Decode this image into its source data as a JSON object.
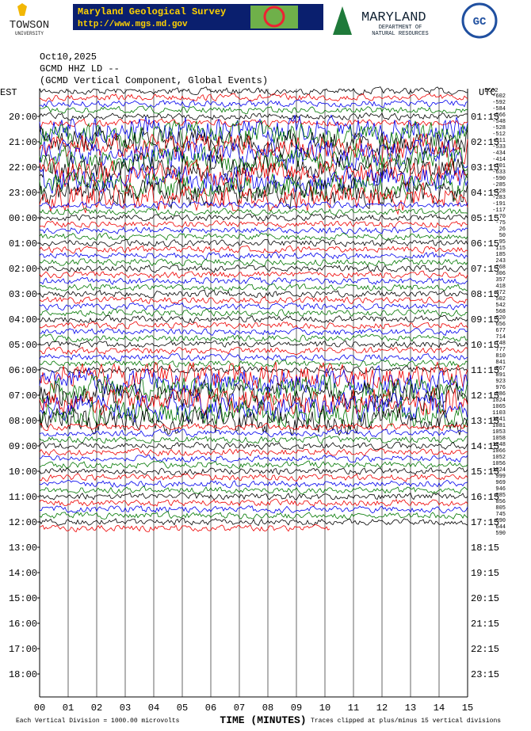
{
  "header": {
    "towson": "TOWSON",
    "towson_sub": "UNIVERSITY",
    "banner_title": "Maryland Geological Survey",
    "banner_url": "http://www.mgs.md.gov",
    "dnr_title": "MARYLAND",
    "dnr_line1": "DEPARTMENT OF",
    "dnr_line2": "NATURAL RESOURCES"
  },
  "chart": {
    "date": "Oct10,2025",
    "station": "GCMD HHZ LD --",
    "subtitle": "(GCMD Vertical Component, Global Events)",
    "left_label": "EST",
    "right_label": "UTC",
    "left_times": [
      "20:00",
      "21:00",
      "22:00",
      "23:00",
      "00:00",
      "01:00",
      "02:00",
      "03:00",
      "04:00",
      "05:00",
      "06:00",
      "07:00",
      "08:00",
      "09:00",
      "10:00",
      "11:00",
      "12:00",
      "13:00",
      "14:00",
      "15:00",
      "16:00",
      "17:00",
      "18:00"
    ],
    "right_times": [
      "01:15",
      "02:15",
      "03:15",
      "04:15",
      "05:15",
      "06:15",
      "07:15",
      "08:15",
      "09:15",
      "10:15",
      "11:15",
      "12:15",
      "13:15",
      "14:15",
      "15:15",
      "16:15",
      "17:15",
      "18:15",
      "19:15",
      "20:15",
      "21:15",
      "22:15",
      "23:15"
    ],
    "offsets_header": "DC02",
    "offsets": [
      -602,
      -592,
      -584,
      -566,
      -548,
      -528,
      -512,
      -511,
      -533,
      -434,
      -414,
      -301,
      -633,
      -590,
      -285,
      -228,
      -283,
      -191,
      -117,
      -70,
      -75,
      26,
      50,
      95,
      115,
      185,
      243,
      268,
      306,
      357,
      418,
      472,
      502,
      542,
      568,
      620,
      656,
      677,
      714,
      748,
      777,
      810,
      841,
      867,
      891,
      923,
      976,
      986,
      1024,
      1065,
      1103,
      1041,
      1081,
      1053,
      1058,
      1048,
      1066,
      1052,
      1056,
      1024,
      999,
      969,
      946,
      885,
      856,
      805,
      745,
      690,
      644,
      590
    ],
    "x_ticks": [
      "00",
      "01",
      "02",
      "03",
      "04",
      "05",
      "06",
      "07",
      "08",
      "09",
      "10",
      "11",
      "12",
      "13",
      "14",
      "15"
    ],
    "x_label": "TIME (MINUTES)",
    "footer_left": "Each Vertical Division = 1000.00 microvolts",
    "footer_right": "Traces clipped at plus/minus 15 vertical divisions"
  }
}
